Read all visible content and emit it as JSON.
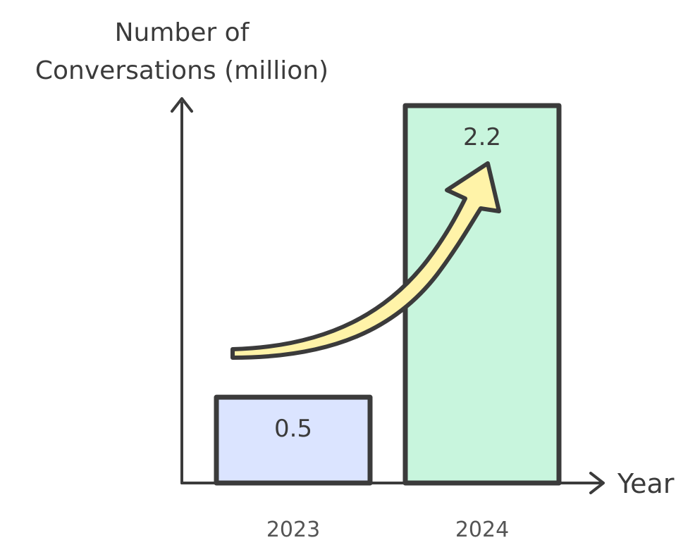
{
  "chart_data": {
    "type": "bar",
    "categories": [
      "2023",
      "2024"
    ],
    "values": [
      0.5,
      2.2
    ],
    "value_labels": [
      "0.5",
      "2.2"
    ],
    "ylabel_lines": [
      "Number of",
      "Conversations (million)"
    ],
    "xlabel": "Year",
    "ylim": [
      0,
      2.2
    ],
    "bar_colors": [
      "#dbe4ff",
      "#c8f5dd"
    ],
    "stroke_color": "#3b3b3b",
    "arrow_color": "#fff3a8",
    "grid": false,
    "legend": "none"
  }
}
